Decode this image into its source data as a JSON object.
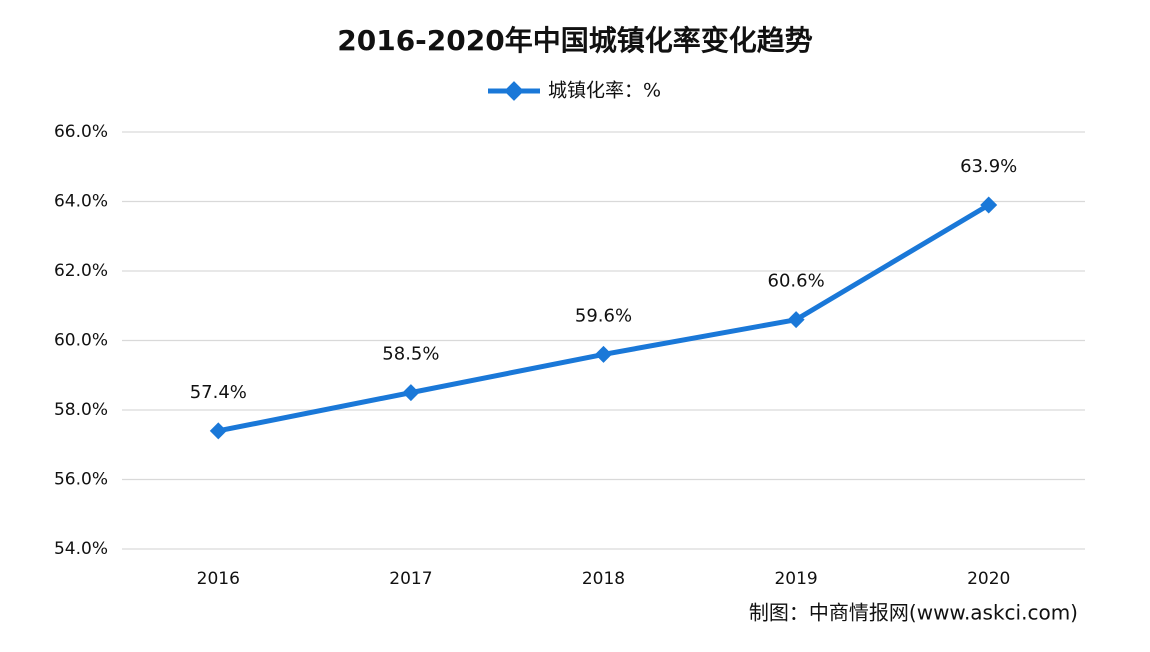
{
  "chart_data": {
    "type": "line",
    "title": "2016-2020年中国城镇化率变化趋势",
    "categories": [
      "2016",
      "2017",
      "2018",
      "2019",
      "2020"
    ],
    "series": [
      {
        "name": "城镇化率：%",
        "color": "#1a78d8",
        "values": [
          57.4,
          58.5,
          59.6,
          60.6,
          63.9
        ],
        "value_labels": [
          "57.4%",
          "58.5%",
          "59.6%",
          "60.6%",
          "63.9%"
        ]
      }
    ],
    "ylim": [
      54,
      66
    ],
    "yticks": [
      {
        "value": 54,
        "label": "54.0%"
      },
      {
        "value": 56,
        "label": "56.0%"
      },
      {
        "value": 58,
        "label": "58.0%"
      },
      {
        "value": 60,
        "label": "60.0%"
      },
      {
        "value": 62,
        "label": "62.0%"
      },
      {
        "value": 64,
        "label": "64.0%"
      },
      {
        "value": 66,
        "label": "66.0%"
      }
    ],
    "grid": true,
    "source": "制图：中商情报网(www.askci.com)"
  }
}
